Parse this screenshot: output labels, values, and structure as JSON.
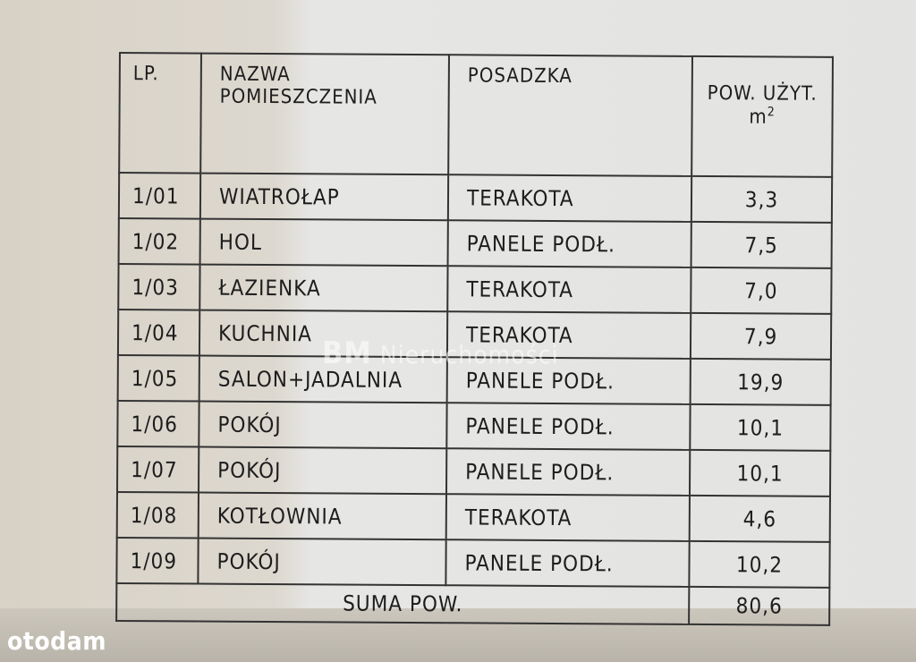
{
  "table": {
    "headers": {
      "lp": "LP.",
      "name_line1": "NAZWA",
      "name_line2": "POMIESZCZENIA",
      "floor": "POSADZKA",
      "area": "POW. UŻYT.",
      "area_unit": "m",
      "area_unit_sup": "2"
    },
    "rows": [
      {
        "lp": "1/01",
        "name": "WIATROŁAP",
        "floor": "TERAKOTA",
        "area": "3,3"
      },
      {
        "lp": "1/02",
        "name": "HOL",
        "floor": "PANELE PODŁ.",
        "area": "7,5"
      },
      {
        "lp": "1/03",
        "name": "ŁAZIENKA",
        "floor": "TERAKOTA",
        "area": "7,0"
      },
      {
        "lp": "1/04",
        "name": "KUCHNIA",
        "floor": "TERAKOTA",
        "area": "7,9"
      },
      {
        "lp": "1/05",
        "name": "SALON+JADALNIA",
        "floor": "PANELE PODŁ.",
        "area": "19,9"
      },
      {
        "lp": "1/06",
        "name": "POKÓJ",
        "floor": "PANELE PODŁ.",
        "area": "10,1"
      },
      {
        "lp": "1/07",
        "name": "POKÓJ",
        "floor": "PANELE PODŁ.",
        "area": "10,1"
      },
      {
        "lp": "1/08",
        "name": "KOTŁOWNIA",
        "floor": "TERAKOTA",
        "area": "4,6"
      },
      {
        "lp": "1/09",
        "name": "POKÓJ",
        "floor": "PANELE PODŁ.",
        "area": "10,2"
      }
    ],
    "sum_label": "SUMA POW.",
    "sum_value": "80,6"
  },
  "watermark": {
    "mark": "BM",
    "text": "Nieruchomości"
  },
  "logo": "otodam"
}
